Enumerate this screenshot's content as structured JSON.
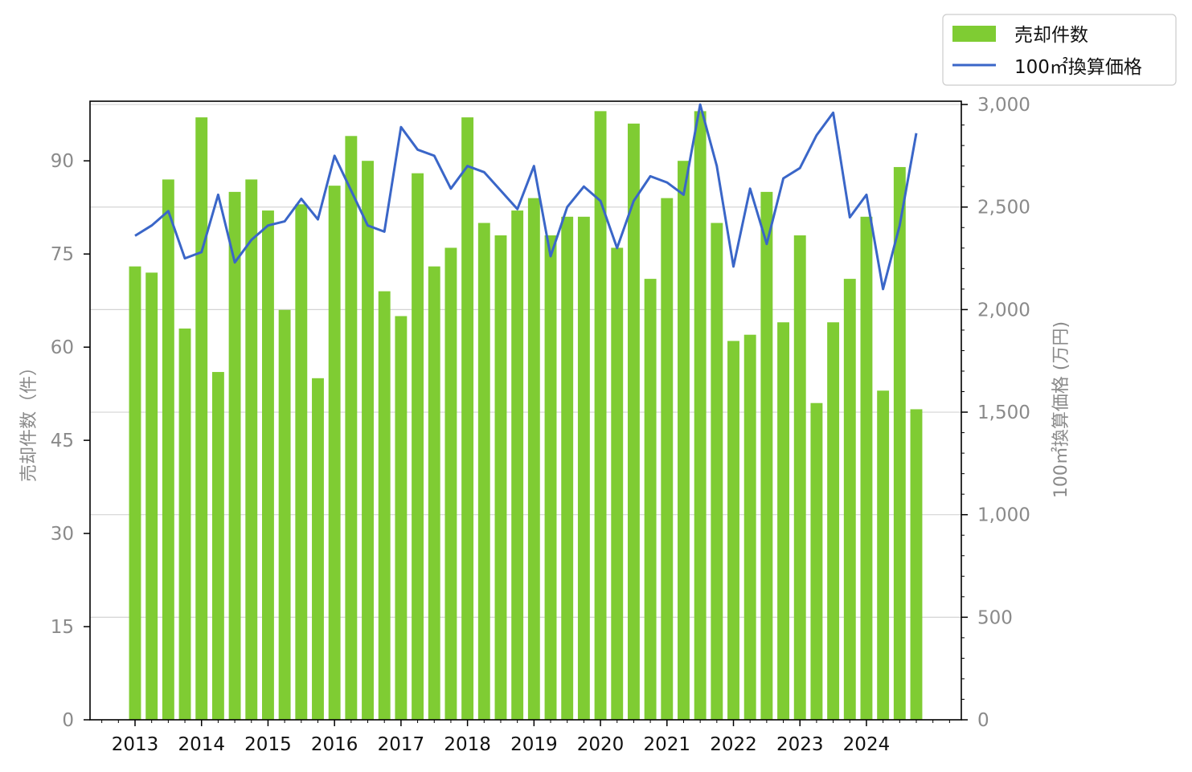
{
  "chart_data": {
    "type": "bar",
    "x_tick_labels": [
      "2013",
      "2014",
      "2015",
      "2016",
      "2017",
      "2018",
      "2019",
      "2020",
      "2021",
      "2022",
      "2023",
      "2024"
    ],
    "series": [
      {
        "name": "売却件数",
        "type": "bar",
        "axis": "left",
        "color": "#7fcc33",
        "values": [
          73,
          72,
          87,
          63,
          97,
          56,
          85,
          87,
          82,
          66,
          83,
          55,
          86,
          94,
          90,
          69,
          65,
          88,
          73,
          76,
          97,
          80,
          78,
          82,
          84,
          78,
          81,
          81,
          98,
          76,
          96,
          71,
          84,
          90,
          98,
          80,
          61,
          62,
          85,
          64,
          78,
          51,
          64,
          71,
          81,
          53,
          89,
          50
        ]
      },
      {
        "name": "100㎡換算価格",
        "type": "line",
        "axis": "right",
        "color": "#3a66c8",
        "values": [
          2360,
          2410,
          2480,
          2250,
          2280,
          2560,
          2230,
          2340,
          2410,
          2430,
          2540,
          2440,
          2750,
          2580,
          2410,
          2380,
          2890,
          2780,
          2750,
          2590,
          2700,
          2670,
          2580,
          2490,
          2700,
          2260,
          2500,
          2600,
          2530,
          2300,
          2530,
          2650,
          2620,
          2560,
          3000,
          2700,
          2210,
          2590,
          2320,
          2640,
          2690,
          2850,
          2960,
          2450,
          2560,
          2100,
          2410,
          2860
        ]
      }
    ],
    "ylabel_left": "売却件数（件）",
    "ylabel_right": "100㎡換算価格 (万円)",
    "ylim_left": [
      0,
      99.6
    ],
    "ylim_right": [
      0,
      3016
    ],
    "yticks_left": [
      0,
      15,
      30,
      45,
      60,
      75,
      90
    ],
    "yticks_right": [
      0,
      500,
      1000,
      1500,
      2000,
      2500,
      3000
    ],
    "ytick_labels_left": [
      "0",
      "15",
      "30",
      "45",
      "60",
      "75",
      "90"
    ],
    "ytick_labels_right": [
      "0",
      "500",
      "1,000",
      "1,500",
      "2,000",
      "2,500",
      "3,000"
    ],
    "grid": "horizontal, right axis",
    "legend": "top-right, outside plot",
    "title": ""
  }
}
